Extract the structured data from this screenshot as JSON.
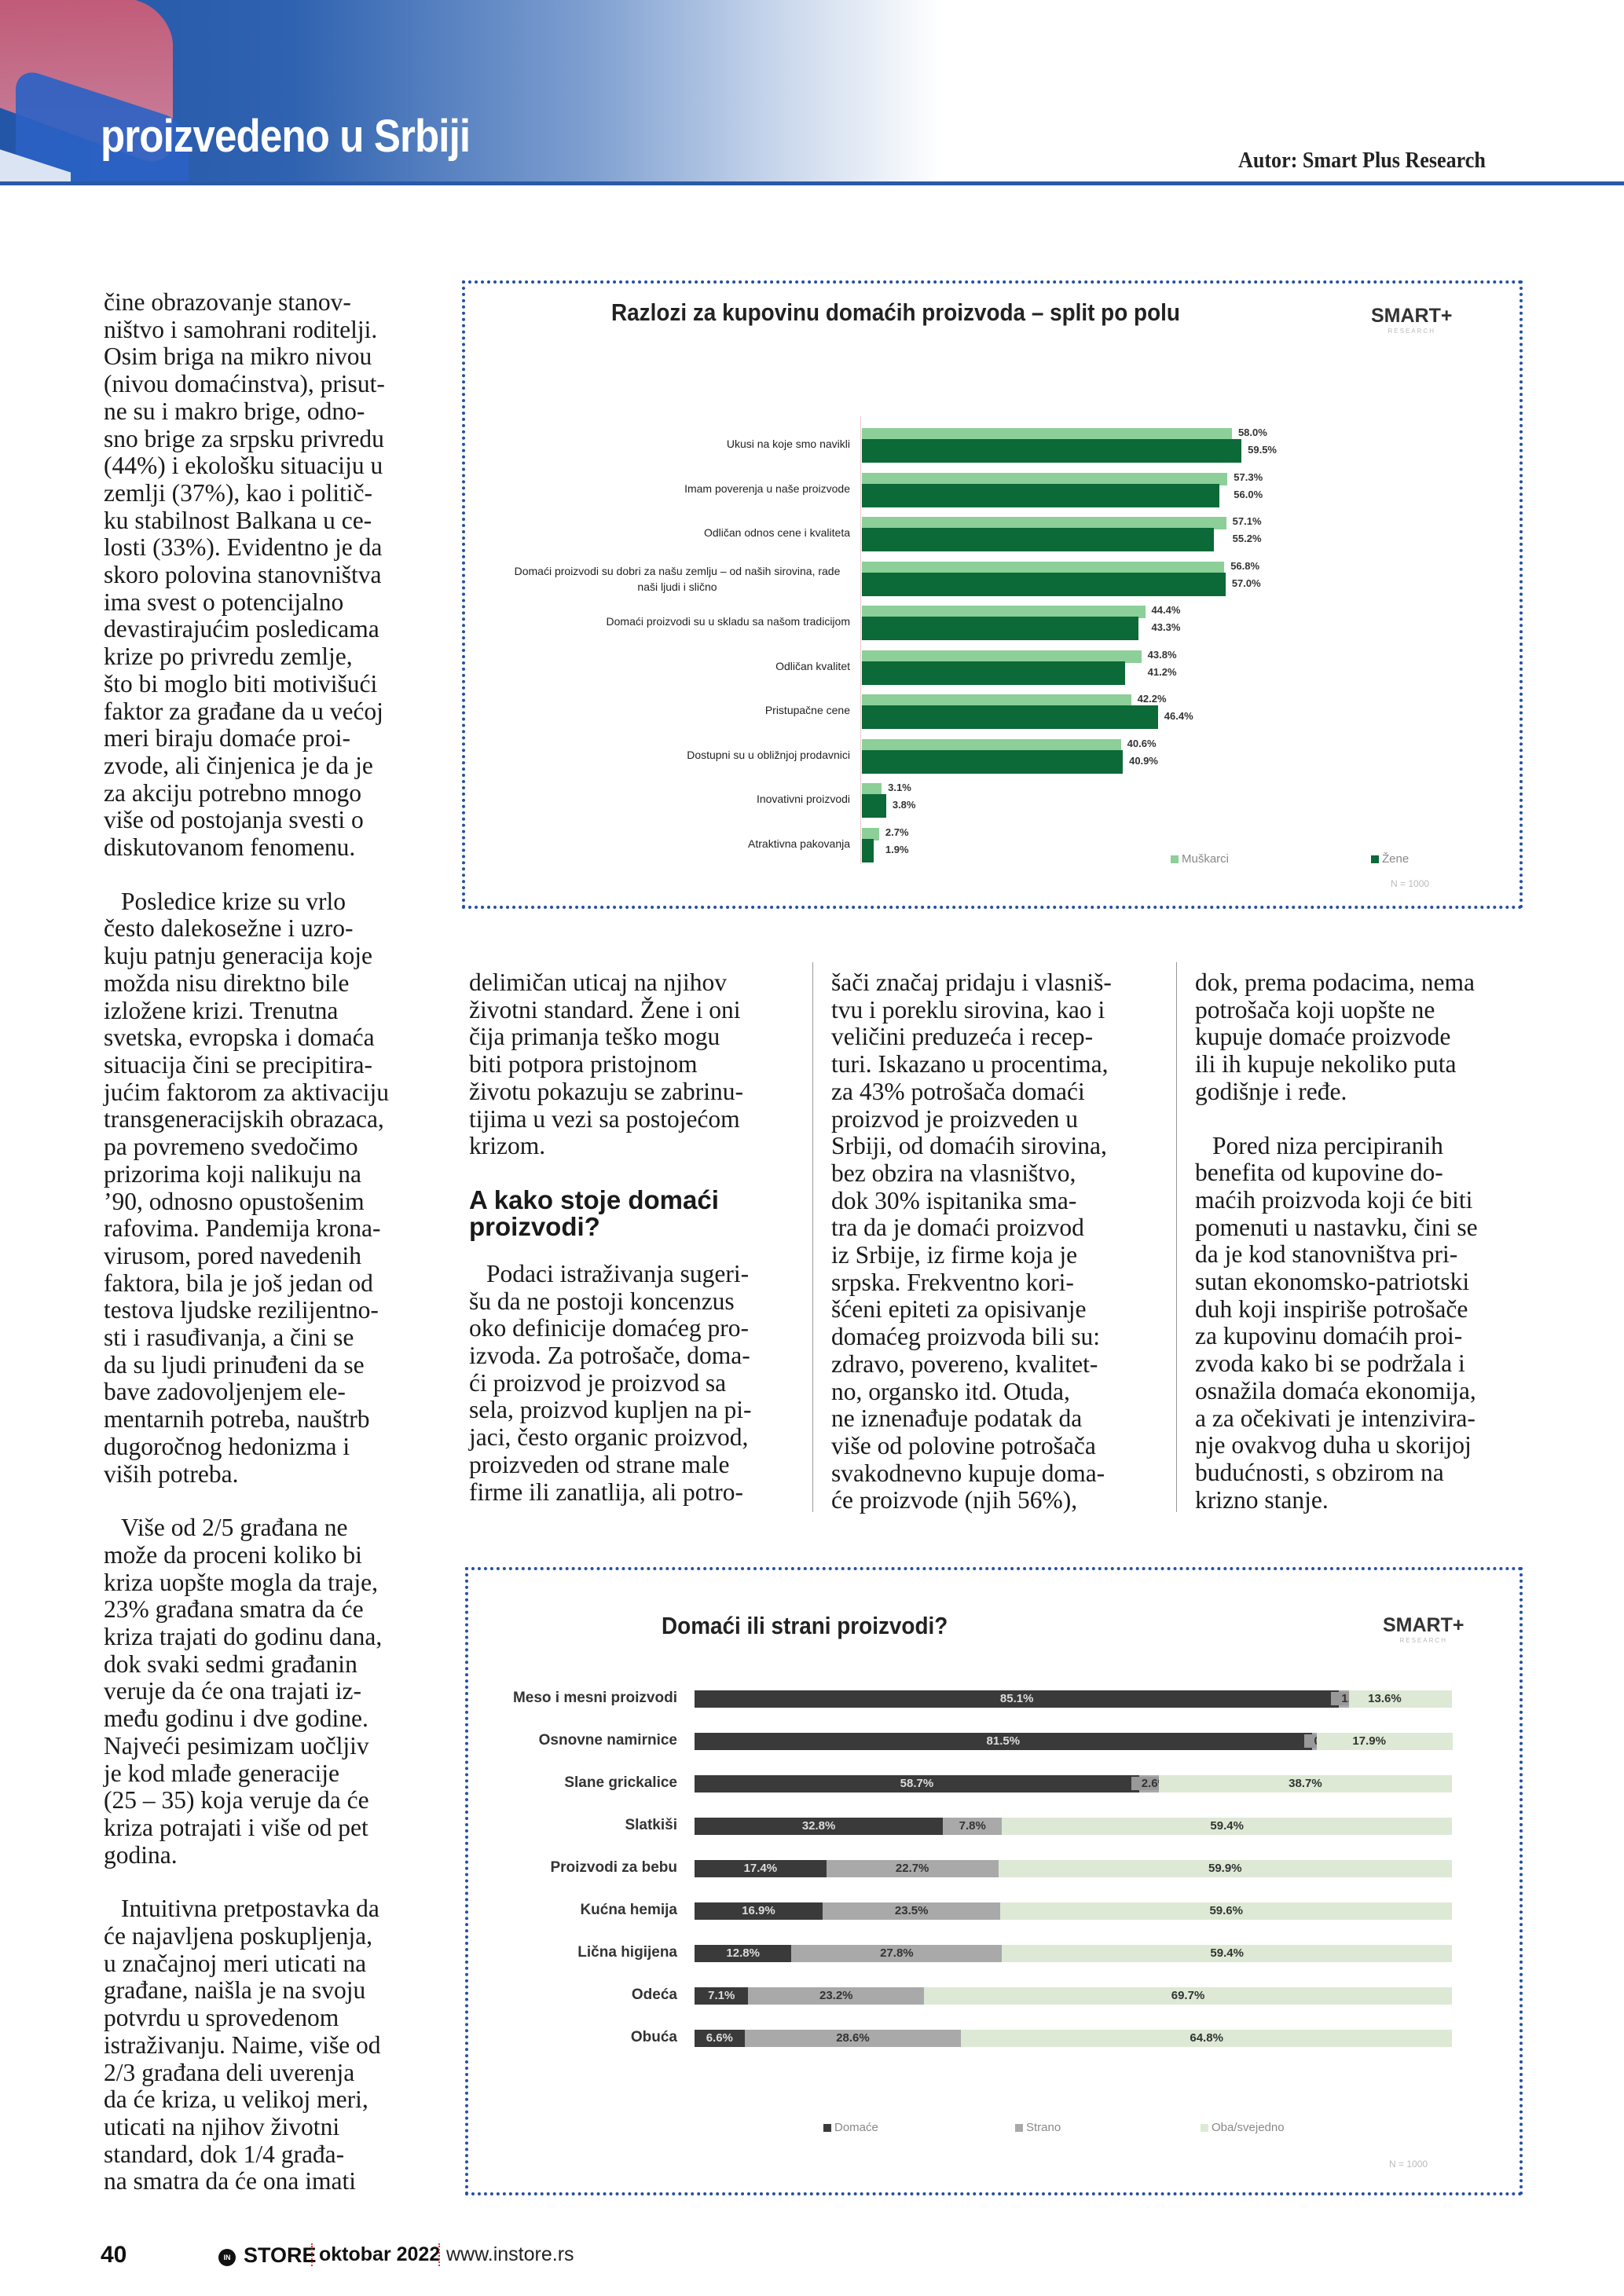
{
  "header": {
    "section_title": "proizvedeno u Srbiji",
    "author": "Autor: Smart Plus Research",
    "brand_color": "#2a5aa6"
  },
  "columns": {
    "left": [
      {
        "indent": false,
        "lines": [
          "čine obrazovanje stanov-",
          "ništvo i samohrani roditelji.",
          "Osim briga na mikro nivou",
          "(nivou domaćinstva), prisut-",
          "ne su i makro brige, odno-",
          "sno brige za srpsku privredu",
          "(44%) i ekološku situaciju u",
          "zemlji (37%), kao i politič-",
          "ku stabilnost Balkana u ce-",
          "losti (33%). Evidentno je da",
          "skoro polovina stanovništva",
          "ima svest o potencijalno",
          "devastirajućim posledicama",
          "krize po privredu zemlje,",
          "što bi moglo biti motivišući",
          "faktor za građane da u većoj",
          "meri biraju domaće proi-",
          "zvode, ali činjenica je da je",
          "za akciju potrebno mnogo",
          "više od postojanja svesti o",
          "diskutovanom fenomenu."
        ]
      },
      {
        "indent": true,
        "lines": [
          "Posledice krize  su vrlo",
          "često dalekosežne i uzro-",
          "kuju patnju generacija koje",
          "možda nisu direktno bile",
          "izložene krizi. Trenutna",
          "svetska, evropska i domaća",
          "situacija čini se precipitira-",
          "jućim faktorom za aktivaciju",
          "transgeneracijskih obrazaca,",
          "pa povremeno svedočimo",
          "prizorima koji nalikuju na",
          "’90, odnosno opustošenim",
          "rafovima. Pandemija krona-",
          "virusom, pored navedenih",
          "faktora, bila je još jedan od",
          "testova ljudske rezilijentno-",
          "sti i rasuđivanja, a čini se",
          "da su ljudi prinuđeni da se",
          "bave zadovoljenjem ele-",
          "mentarnih potreba, nauštrb",
          "dugoročnog hedonizma i",
          "viših potreba."
        ]
      },
      {
        "indent": true,
        "lines": [
          "Više od 2/5 građana ne",
          "može da proceni koliko bi",
          "kriza uopšte mogla da traje,",
          "23% građana smatra da će",
          "kriza trajati do godinu dana,",
          "dok svaki sedmi građanin",
          "veruje da će ona trajati iz-",
          "među godinu i dve godine.",
          "Najveći pesimizam uočljiv",
          "je kod mlađe generacije",
          "(25 – 35) koja veruje da će",
          "kriza potrajati i više od pet",
          "godina."
        ]
      },
      {
        "indent": true,
        "lines": [
          "Intuitivna pretpostavka da",
          "će najavljena poskupljenja,",
          "u značajnoj meri uticati na",
          "građane, naišla je na svoju",
          "potvrdu u sprovedenom",
          "istraživanju. Naime, više od",
          "2/3 građana deli uverenja",
          "da će kriza, u velikoj meri,",
          "uticati na njihov životni",
          "standard, dok 1/4 građa-",
          "na smatra da će ona imati"
        ]
      }
    ],
    "middle1": {
      "para1": [
        "delimičan uticaj na njihov",
        "životni standard. Žene i oni",
        "čija primanja teško mogu",
        "biti potpora pristojnom",
        "životu pokazuju se zabrinu-",
        "tijima u vezi sa postojećom",
        "krizom."
      ],
      "heading": "A kako stoje domaći proizvodi?",
      "para2": [
        "Podaci istraživanja sugeri-",
        "šu da ne postoji koncenzus",
        "oko definicije domaćeg pro-",
        "izvoda. Za potrošače, doma-",
        "ći proizvod je proizvod sa",
        "sela, proizvod kupljen na pi-",
        "jaci, često organic proizvod,",
        "proizveden od strane male",
        "firme ili zanatlija, ali potro-"
      ]
    },
    "middle2": [
      "šači značaj pridaju i vlasniš-",
      "tvu i poreklu sirovina, kao i",
      "veličini preduzeća i recep-",
      "turi. Iskazano u procentima,",
      "za 43% potrošača domaći",
      "proizvod je proizveden u",
      "Srbiji, od domaćih sirovina,",
      "bez obzira na vlasništvo,",
      "dok 30% ispitanika sma-",
      "tra da je domaći proizvod",
      "iz Srbije, iz firme koja je",
      "srpska. Frekventno kori-",
      "šćeni epiteti za opisivanje",
      "domaćeg proizvoda bili su:",
      "zdravo, povereno, kvalitet-",
      "no, organsko itd. Otuda,",
      "ne iznenađuje podatak da",
      "više od polovine potrošača",
      "svakodnevno kupuje doma-",
      "će proizvode (njih 56%),"
    ],
    "right": {
      "para1": [
        "dok, prema podacima, nema",
        "potrošača koji uopšte ne",
        "kupuje domaće proizvode",
        "ili ih kupuje nekoliko puta",
        "godišnje i ređe."
      ],
      "para2": [
        "Pored niza percipiranih",
        "benefita od kupovine do-",
        "maćih proizvoda koji će biti",
        "pomenuti u nastavku, čini se",
        "da je kod stanovništva pri-",
        "sutan ekonomsko-patriotski",
        "duh koji inspiriše potrošače",
        "za kupovinu domaćih proi-",
        "zvoda kako bi se podržala i",
        "osnažila domaća ekonomija,",
        "a za očekivati je intenzivira-",
        "nje ovakvog duha u skorijoj",
        "budućnosti, s obzirom na",
        "krizno stanje."
      ]
    }
  },
  "chart_data": [
    {
      "type": "bar",
      "orientation": "horizontal",
      "title": "Razlozi za kupovinu domaćih proizvoda – split po polu",
      "logo": "SMART+",
      "categories": [
        "Ukusi na koje smo navikli",
        "Imam poverenja u naše proizvode",
        "Odličan odnos cene i kvaliteta",
        "Domaći proizvodi su dobri za našu zemlju – od naših sirovina, rade naši ljudi i slično",
        "Domaći proizvodi su u skladu sa našom tradicijom",
        "Odličan kvalitet",
        "Pristupačne cene",
        "Dostupni su u obližnjoj prodavnici",
        "Inovativni proizvodi",
        "Atraktivna pakovanja"
      ],
      "series": [
        {
          "name": "Muškarci",
          "color": "#8ccf98",
          "values": [
            58.0,
            57.3,
            57.1,
            56.8,
            44.4,
            43.8,
            42.2,
            40.6,
            3.1,
            2.7
          ]
        },
        {
          "name": "Žene",
          "color": "#0b6a37",
          "values": [
            59.5,
            56.0,
            55.2,
            57.0,
            43.3,
            41.2,
            46.4,
            40.9,
            3.8,
            1.9
          ]
        }
      ],
      "unit": "%",
      "xlim": [
        0,
        60
      ],
      "legend": "bottom-right",
      "note": "N = 1000"
    },
    {
      "type": "bar",
      "orientation": "horizontal",
      "stacked": true,
      "title": "Domaći ili strani proizvodi?",
      "logo": "SMART+",
      "categories": [
        "Meso i mesni proizvodi",
        "Osnovne namirnice",
        "Slane grickalice",
        "Slatkiši",
        "Proizvodi za bebu",
        "Kućna hemija",
        "Lična higijena",
        "Odeća",
        "Obuća"
      ],
      "series": [
        {
          "name": "Domaće",
          "color": "#3a3a3a",
          "text_color": "#dddddd",
          "values": [
            85.1,
            81.5,
            58.7,
            32.8,
            17.4,
            16.9,
            12.8,
            7.1,
            6.6
          ]
        },
        {
          "name": "Strano",
          "color": "#a9a9a9",
          "text_color": "#333333",
          "values": [
            1.3,
            0.7,
            2.6,
            7.8,
            22.7,
            23.5,
            27.8,
            23.2,
            28.6
          ]
        },
        {
          "name": "Oba/svejedno",
          "color": "#dde9d5",
          "text_color": "#333333",
          "values": [
            13.6,
            17.9,
            38.7,
            59.4,
            59.9,
            59.6,
            59.4,
            69.7,
            64.8
          ]
        }
      ],
      "unit": "%",
      "xlim": [
        0,
        100
      ],
      "legend": "bottom",
      "note": "N = 1000"
    }
  ],
  "footer": {
    "page_number": "40",
    "magazine": "STORE",
    "magazine_mark": "IN",
    "issue": "oktobar 2022",
    "website": "www.instore.rs"
  }
}
